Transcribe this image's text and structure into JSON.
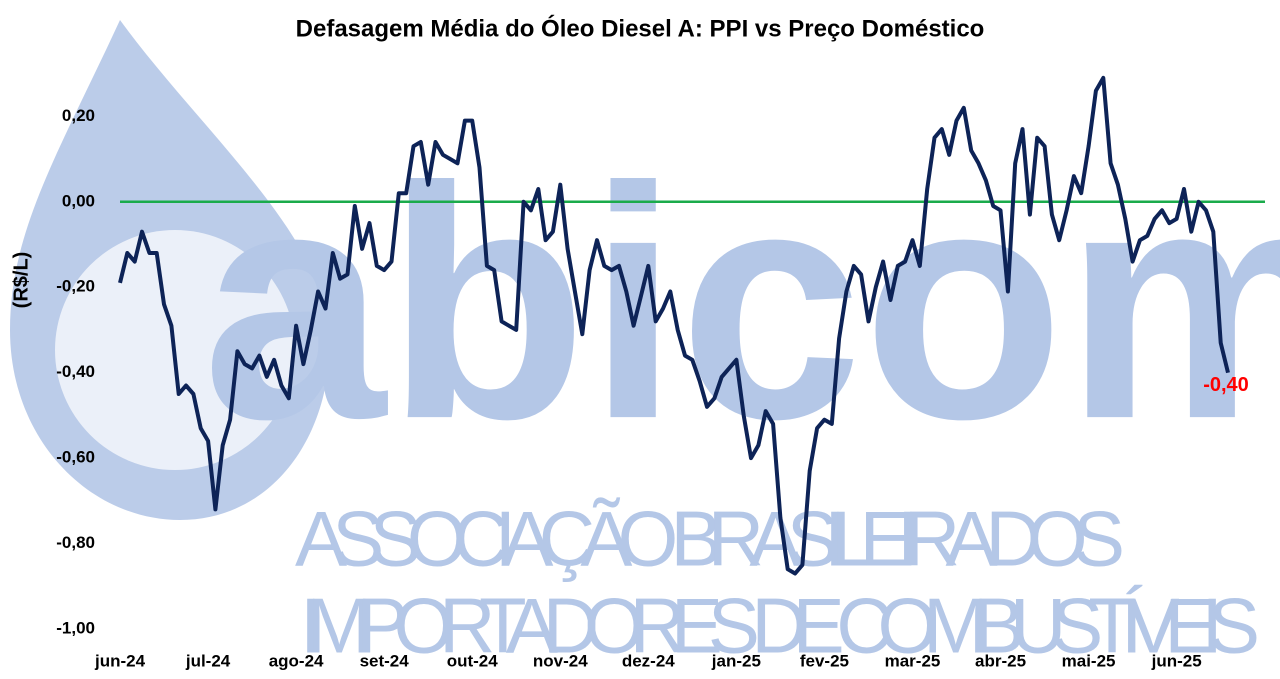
{
  "chart_data": {
    "type": "line",
    "title": "Defasagem Média do Óleo Diesel A: PPI vs Preço Doméstico",
    "y_label": "(R$/L)",
    "watermark": {
      "logo": "abicom",
      "line1": "ASSOCIAÇÃO BRASILEIRA DOS",
      "line2": "IMPORTADORES DE COMBUSTÍVEIS"
    },
    "categories": [
      "jun-24",
      null,
      null,
      null,
      null,
      null,
      null,
      null,
      null,
      null,
      null,
      null,
      "jul-24",
      null,
      null,
      null,
      null,
      null,
      null,
      null,
      null,
      null,
      null,
      null,
      "ago-24",
      null,
      null,
      null,
      null,
      null,
      null,
      null,
      null,
      null,
      null,
      null,
      "set-24",
      null,
      null,
      null,
      null,
      null,
      null,
      null,
      null,
      null,
      null,
      null,
      "out-24",
      null,
      null,
      null,
      null,
      null,
      null,
      null,
      null,
      null,
      null,
      null,
      "nov-24",
      null,
      null,
      null,
      null,
      null,
      null,
      null,
      null,
      null,
      null,
      null,
      "dez-24",
      null,
      null,
      null,
      null,
      null,
      null,
      null,
      null,
      null,
      null,
      null,
      "jan-25",
      null,
      null,
      null,
      null,
      null,
      null,
      null,
      null,
      null,
      null,
      null,
      "fev-25",
      null,
      null,
      null,
      null,
      null,
      null,
      null,
      null,
      null,
      null,
      null,
      "mar-25",
      null,
      null,
      null,
      null,
      null,
      null,
      null,
      null,
      null,
      null,
      null,
      "abr-25",
      null,
      null,
      null,
      null,
      null,
      null,
      null,
      null,
      null,
      null,
      null,
      "mai-25",
      null,
      null,
      null,
      null,
      null,
      null,
      null,
      null,
      null,
      null,
      null,
      "jun-25",
      null,
      null,
      null,
      null,
      null,
      null,
      null
    ],
    "values": [
      -0.19,
      -0.12,
      -0.14,
      -0.07,
      -0.12,
      -0.12,
      -0.24,
      -0.29,
      -0.45,
      -0.43,
      -0.45,
      -0.53,
      -0.56,
      -0.72,
      -0.57,
      -0.51,
      -0.35,
      -0.38,
      -0.39,
      -0.36,
      -0.41,
      -0.37,
      -0.43,
      -0.46,
      -0.29,
      -0.38,
      -0.3,
      -0.21,
      -0.25,
      -0.12,
      -0.18,
      -0.17,
      -0.01,
      -0.11,
      -0.05,
      -0.15,
      -0.16,
      -0.14,
      0.02,
      0.02,
      0.13,
      0.14,
      0.04,
      0.14,
      0.11,
      0.1,
      0.09,
      0.19,
      0.19,
      0.08,
      -0.15,
      -0.16,
      -0.28,
      -0.29,
      -0.3,
      0.0,
      -0.02,
      0.03,
      -0.09,
      -0.07,
      0.04,
      -0.11,
      -0.21,
      -0.31,
      -0.16,
      -0.09,
      -0.15,
      -0.16,
      -0.15,
      -0.21,
      -0.29,
      -0.22,
      -0.15,
      -0.28,
      -0.25,
      -0.21,
      -0.3,
      -0.36,
      -0.37,
      -0.42,
      -0.48,
      -0.46,
      -0.41,
      -0.39,
      -0.37,
      -0.5,
      -0.6,
      -0.57,
      -0.49,
      -0.52,
      -0.74,
      -0.86,
      -0.87,
      -0.85,
      -0.63,
      -0.53,
      -0.51,
      -0.52,
      -0.32,
      -0.21,
      -0.15,
      -0.17,
      -0.28,
      -0.2,
      -0.14,
      -0.23,
      -0.15,
      -0.14,
      -0.09,
      -0.15,
      0.03,
      0.15,
      0.17,
      0.11,
      0.19,
      0.22,
      0.12,
      0.09,
      0.05,
      -0.01,
      -0.02,
      -0.21,
      0.09,
      0.17,
      -0.03,
      0.15,
      0.13,
      -0.03,
      -0.09,
      -0.02,
      0.06,
      0.02,
      0.13,
      0.26,
      0.29,
      0.09,
      0.04,
      -0.04,
      -0.14,
      -0.09,
      -0.08,
      -0.04,
      -0.02,
      -0.05,
      -0.04,
      0.03,
      -0.07,
      0.0,
      -0.02,
      -0.07,
      -0.33,
      -0.4
    ],
    "value_labels": [
      null,
      null,
      null,
      null,
      null,
      null,
      null,
      null,
      null,
      null,
      null,
      null,
      null,
      null,
      null,
      null,
      null,
      null,
      null,
      null,
      null,
      null,
      null,
      null,
      null,
      null,
      null,
      null,
      null,
      null,
      null,
      null,
      null,
      null,
      null,
      null,
      null,
      null,
      null,
      null,
      null,
      null,
      null,
      null,
      null,
      null,
      null,
      null,
      null,
      null,
      null,
      null,
      null,
      null,
      null,
      null,
      null,
      null,
      null,
      null,
      null,
      null,
      null,
      null,
      null,
      null,
      null,
      null,
      null,
      null,
      null,
      null,
      null,
      null,
      null,
      null,
      null,
      null,
      null,
      null,
      null,
      null,
      null,
      null,
      null,
      null,
      null,
      null,
      null,
      null,
      null,
      null,
      null,
      null,
      null,
      null,
      null,
      null,
      null,
      null,
      null,
      null,
      null,
      null,
      null,
      null,
      null,
      null,
      null,
      null,
      null,
      null,
      null,
      null,
      null,
      null,
      null,
      null,
      null,
      null,
      null,
      null,
      null,
      null,
      null,
      null,
      null,
      null,
      null,
      null,
      null,
      null,
      null,
      null,
      null,
      null,
      null,
      null,
      null,
      null,
      null,
      null,
      null,
      null,
      null,
      null,
      null,
      null,
      null,
      null,
      null,
      "-0,40"
    ],
    "color": "#0d2357",
    "value_label_color": "#ff0000",
    "zero_line_color": "#1aab4b",
    "ylim": [
      -1.0,
      0.3
    ],
    "yticks": [
      {
        "value": -1.0,
        "label": "-1,00"
      },
      {
        "value": -0.8,
        "label": "-0,80"
      },
      {
        "value": -0.6,
        "label": "-0,60"
      },
      {
        "value": -0.4,
        "label": "-0,40"
      },
      {
        "value": -0.2,
        "label": "-0,20"
      },
      {
        "value": 0,
        "label": "0,00"
      },
      {
        "value": 0.2,
        "label": "0,20"
      }
    ],
    "grid": false
  }
}
